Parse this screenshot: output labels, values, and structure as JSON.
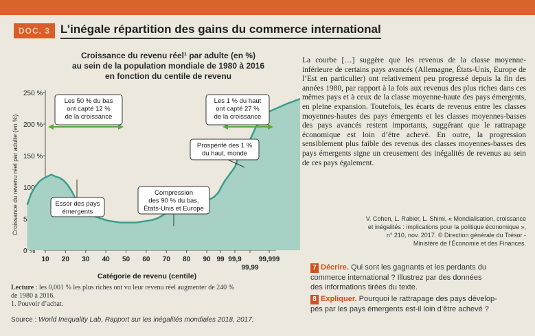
{
  "doc": {
    "tag": "DOC. 3",
    "title": "L’inégale répartition des gains du commerce international"
  },
  "chart_title": {
    "line1": "Croissance du revenu réel¹ par adulte (en %)",
    "line2": "au sein de la population mondiale de 1980 à 2016",
    "line3": "en fonction du centile de revenu"
  },
  "chart_data": {
    "type": "area",
    "title": "Croissance du revenu réel par adulte (en %) au sein de la population mondiale de 1980 à 2016 en fonction du centile de revenu",
    "xlabel": "Catégorie de revenu (centile)",
    "ylabel": "Croissance du revenu réel par adulte (en %)",
    "x_tick_labels": [
      "10",
      "20",
      "30",
      "40",
      "50",
      "60",
      "70",
      "80",
      "90",
      "99",
      "99,9",
      "99,99",
      "99,999"
    ],
    "y_tick_labels": [
      "0 %",
      "50 %",
      "100 %",
      "150 %",
      "200 %",
      "250 %"
    ],
    "ylim": [
      0,
      250
    ],
    "x": [
      1,
      3,
      5,
      7,
      9,
      11,
      13,
      15,
      17,
      19,
      21,
      23,
      25,
      27,
      29,
      31,
      33,
      35,
      37,
      39,
      41,
      43,
      45,
      47,
      49,
      51,
      53,
      55,
      57,
      59,
      61,
      63,
      65,
      67,
      69,
      71,
      73,
      75,
      77,
      79,
      81,
      83,
      85,
      87,
      89,
      91,
      93,
      95,
      97,
      98,
      99,
      99.5,
      99.9,
      99.95,
      99.99,
      99.995,
      99.999,
      99.9995,
      99.9999
    ],
    "values": [
      72,
      90,
      101,
      109,
      114,
      117,
      120,
      117,
      115,
      111,
      104,
      94,
      82,
      71,
      64,
      59,
      56,
      53,
      51,
      49,
      47,
      46,
      45,
      44,
      44,
      44,
      44,
      44,
      45,
      46,
      47,
      48,
      50,
      53,
      57,
      62,
      66,
      68,
      69,
      70,
      72,
      74,
      76,
      78,
      79,
      80,
      82,
      85,
      90,
      93,
      98,
      110,
      132,
      152,
      175,
      195,
      220,
      232,
      240
    ],
    "annotations": [
      {
        "lines": [
          "Les 50 % du bas",
          "ont capté 12 %",
          "de la croissance"
        ]
      },
      {
        "lines": [
          "Les 1 % du haut",
          "ont capté 27 %",
          "de la croissance"
        ]
      },
      {
        "lines": [
          "Prospérité des 1 %",
          "du haut, monde"
        ]
      },
      {
        "lines": [
          "Compression",
          "des 90 % du bas,",
          "États-Unis et Europe"
        ]
      },
      {
        "lines": [
          "Essor des pays",
          "émergents"
        ]
      }
    ],
    "colors": {
      "fill": "#a6d1c4",
      "line": "#3a9e8c",
      "arrow": "#5aa744",
      "box_bg": "#ffffff",
      "box_border": "#333333"
    }
  },
  "right_paragraph": "La courbe […] suggère que les revenus de la classe moyenne-inférieure de certains pays avancés (Allemagne, États-Unis, Europe de l’Est en particulier) ont relativement peu progressé depuis la fin des années 1980, par rapport à la fois aux revenus des plus riches dans ces mêmes pays et à ceux de la classe moyenne-haute des pays émergents, en pleine expansion. Toutefois, les écarts de revenus entre les classes moyennes-hautes des pays émergents et les classes moyennes-basses des pays avancés restent importants, suggérant que le rattrapage économique est loin d’être achevé. En outre, la progression sensiblement plus faible des revenus des classes moyennes-basses des pays émergents signe un creusement des inégalités de revenus au sein de ces pays également.",
  "citation": {
    "line1": "V. Cohen, L. Rabier, L. Shimi, « Mondialisation, croissance",
    "line2": "et inégalités : implications pour la politique économique »,",
    "line3": "n° 210, nov. 2017. © Direction générale du Trésor -",
    "line4": "Ministère de l’Économie et des Finances."
  },
  "questions": {
    "q7": {
      "num": "7",
      "keyword": "Décrire.",
      "line1": " Qui sont les gagnants et les perdants du",
      "line2": "commerce international ? Illustrez par des données",
      "line3": "des informations tirées du texte."
    },
    "q8": {
      "num": "8",
      "keyword": "Expliquer.",
      "line1": " Pourquoi le rattrapage des pays dévelop-",
      "line2": "pés par les pays émergents est-il loin d’être achevé ?"
    }
  },
  "lecture": {
    "label": "Lecture",
    "line1": " : les 0,001 % les plus riches ont vu leur revenu réel augmenter de 240 %",
    "line2": "de 1980 à 2016."
  },
  "footnote": "1. Pouvoir d’achat.",
  "source": {
    "label": "Source : ",
    "text": "World Inequality Lab, Rapport sur les inégalités mondiales 2018, 2017."
  }
}
